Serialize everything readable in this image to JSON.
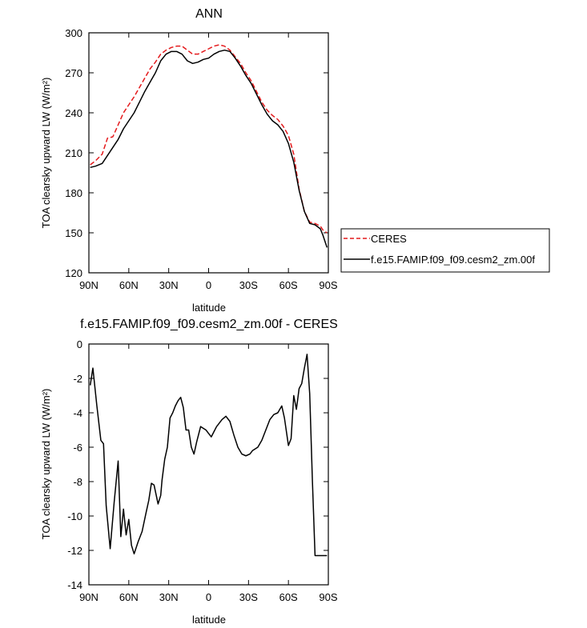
{
  "chart_data": [
    {
      "type": "line",
      "title": "ANN",
      "xlabel": "latitude",
      "ylabel": "TOA clearsky upward LW (W/m²)",
      "xlim": [
        90,
        -90
      ],
      "ylim": [
        120,
        300
      ],
      "yticks": [
        "120",
        "150",
        "180",
        "210",
        "240",
        "270",
        "300"
      ],
      "xticks": [
        {
          "value": 90,
          "label": "90N"
        },
        {
          "value": 60,
          "label": "60N"
        },
        {
          "value": 30,
          "label": "30N"
        },
        {
          "value": 0,
          "label": "0"
        },
        {
          "value": -30,
          "label": "30S"
        },
        {
          "value": -60,
          "label": "60S"
        },
        {
          "value": -90,
          "label": "90S"
        }
      ],
      "legend": {
        "placement": "right",
        "entries": [
          "CERES",
          "f.e15.FAMIP.f09_f09.cesm2_zm.00f"
        ]
      },
      "series": [
        {
          "name": "CERES",
          "color": "#e41a1c",
          "dash": "dashed",
          "x": [
            89,
            85,
            80,
            76,
            72,
            68,
            64,
            60,
            56,
            52,
            48,
            44,
            40,
            36,
            32,
            28,
            24,
            20,
            16,
            12,
            8,
            4,
            0,
            -4,
            -8,
            -12,
            -16,
            -20,
            -24,
            -28,
            -32,
            -36,
            -40,
            -44,
            -48,
            -52,
            -56,
            -60,
            -64,
            -68,
            -72,
            -76,
            -80,
            -84,
            -86,
            -89
          ],
          "y": [
            201,
            204,
            209,
            221,
            222,
            231,
            240,
            246,
            252,
            259,
            266,
            273,
            278,
            284,
            287,
            289,
            290,
            290,
            287,
            284,
            284,
            286,
            288,
            290,
            291,
            290,
            287,
            282,
            277,
            270,
            264,
            256,
            248,
            242,
            238,
            235,
            230,
            223,
            209,
            183,
            166,
            158,
            157,
            155,
            152,
            150
          ]
        },
        {
          "name": "f.e15.FAMIP.f09_f09.cesm2_zm.00f",
          "color": "#000000",
          "dash": "solid",
          "x": [
            89,
            85,
            80,
            76,
            72,
            68,
            64,
            60,
            56,
            52,
            48,
            44,
            40,
            36,
            32,
            28,
            24,
            20,
            16,
            12,
            8,
            4,
            0,
            -4,
            -8,
            -12,
            -16,
            -20,
            -24,
            -28,
            -32,
            -36,
            -40,
            -44,
            -48,
            -52,
            -56,
            -60,
            -64,
            -68,
            -72,
            -76,
            -80,
            -84,
            -86,
            -89
          ],
          "y": [
            199,
            200,
            202,
            208,
            214,
            220,
            228,
            234,
            240,
            248,
            256,
            263,
            270,
            279,
            284,
            286,
            286,
            284,
            279,
            277,
            278,
            280,
            281,
            284,
            286,
            287,
            286,
            281,
            275,
            268,
            262,
            254,
            246,
            239,
            234,
            231,
            226,
            217,
            203,
            182,
            166,
            157,
            156,
            153,
            148,
            139
          ]
        }
      ]
    },
    {
      "type": "line",
      "title": "f.e15.FAMIP.f09_f09.cesm2_zm.00f - CERES",
      "xlabel": "latitude",
      "ylabel": "TOA clearsky upward LW (W/m²)",
      "xlim": [
        90,
        -90
      ],
      "ylim": [
        -14,
        0
      ],
      "yticks": [
        "-14",
        "-12",
        "-10",
        "-8",
        "-6",
        "-4",
        "-2",
        "0"
      ],
      "xticks": [
        {
          "value": 90,
          "label": "90N"
        },
        {
          "value": 60,
          "label": "60N"
        },
        {
          "value": 30,
          "label": "30N"
        },
        {
          "value": 0,
          "label": "0"
        },
        {
          "value": -30,
          "label": "30S"
        },
        {
          "value": -60,
          "label": "60S"
        },
        {
          "value": -90,
          "label": "90S"
        }
      ],
      "series": [
        {
          "color": "#000000",
          "dash": "solid",
          "x": [
            89,
            87,
            84,
            81,
            79,
            77,
            74,
            71,
            68,
            66,
            64,
            62,
            60,
            58,
            56,
            53,
            50,
            47,
            45,
            43,
            41,
            38,
            36,
            35,
            33,
            31,
            29,
            27,
            25,
            23,
            21,
            19,
            17,
            15,
            13,
            11,
            9,
            6,
            4,
            2,
            0,
            -2,
            -4,
            -6,
            -8,
            -10,
            -13,
            -16,
            -19,
            -22,
            -25,
            -28,
            -31,
            -33,
            -35,
            -37,
            -40,
            -43,
            -46,
            -49,
            -52,
            -55,
            -57,
            -60,
            -62,
            -64,
            -66,
            -68,
            -70,
            -72,
            -74,
            -76,
            -78,
            -80,
            -82,
            -84,
            -86,
            -88,
            -89
          ],
          "y": [
            -2.4,
            -1.4,
            -3.6,
            -5.6,
            -5.8,
            -9.4,
            -11.9,
            -9.2,
            -6.8,
            -11.2,
            -9.6,
            -11.1,
            -10.2,
            -11.7,
            -12.2,
            -11.5,
            -10.9,
            -9.8,
            -9.1,
            -8.1,
            -8.2,
            -9.3,
            -8.8,
            -7.9,
            -6.7,
            -6.0,
            -4.3,
            -4.0,
            -3.6,
            -3.3,
            -3.1,
            -3.7,
            -5.0,
            -5.0,
            -6.0,
            -6.4,
            -5.7,
            -4.8,
            -4.9,
            -5.0,
            -5.2,
            -5.4,
            -5.1,
            -4.8,
            -4.6,
            -4.4,
            -4.2,
            -4.5,
            -5.3,
            -6.0,
            -6.4,
            -6.5,
            -6.4,
            -6.2,
            -6.1,
            -6.0,
            -5.6,
            -5.0,
            -4.4,
            -4.1,
            -4.0,
            -3.6,
            -4.3,
            -5.9,
            -5.5,
            -3.0,
            -3.8,
            -2.6,
            -2.3,
            -1.4,
            -0.6,
            -2.9,
            -7.9,
            -12.3,
            -12.3,
            -12.3,
            -12.3,
            -12.3,
            -12.3
          ]
        }
      ]
    }
  ]
}
